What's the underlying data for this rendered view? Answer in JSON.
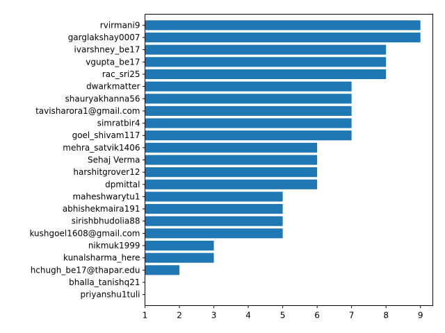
{
  "chart_data": {
    "type": "bar",
    "orientation": "horizontal",
    "title": "",
    "xlabel": "",
    "ylabel": "",
    "categories": [
      "rvirmani9",
      "garglakshay0007",
      "ivarshney_be17",
      "vgupta_be17",
      "rac_sri25",
      "dwarkmatter",
      "shauryakhanna56",
      "tavisharora1@gmail.com",
      "simratbir4",
      "goel_shivam117",
      "mehra_satvik1406",
      "Sehaj Verma",
      "harshitgrover12",
      "dpmittal",
      "maheshwarytu1",
      "abhishekmaira191",
      "sirishbhudolia88",
      "kushgoel1608@gmail.com",
      "nikmuk1999",
      "kunalsharma_here",
      "hchugh_be17@thapar.edu",
      "bhalla_tanishq21",
      "priyanshu1tuli"
    ],
    "values": [
      9,
      9,
      8,
      8,
      8,
      7,
      7,
      7,
      7,
      7,
      6,
      6,
      6,
      6,
      5,
      5,
      5,
      5,
      3,
      3,
      2,
      1,
      1
    ],
    "xlim": [
      1,
      9.36
    ],
    "xticks": [
      1,
      2,
      3,
      4,
      5,
      6,
      7,
      8,
      9
    ],
    "bar_color": "#1f77b4",
    "grid": false,
    "legend": "none"
  }
}
